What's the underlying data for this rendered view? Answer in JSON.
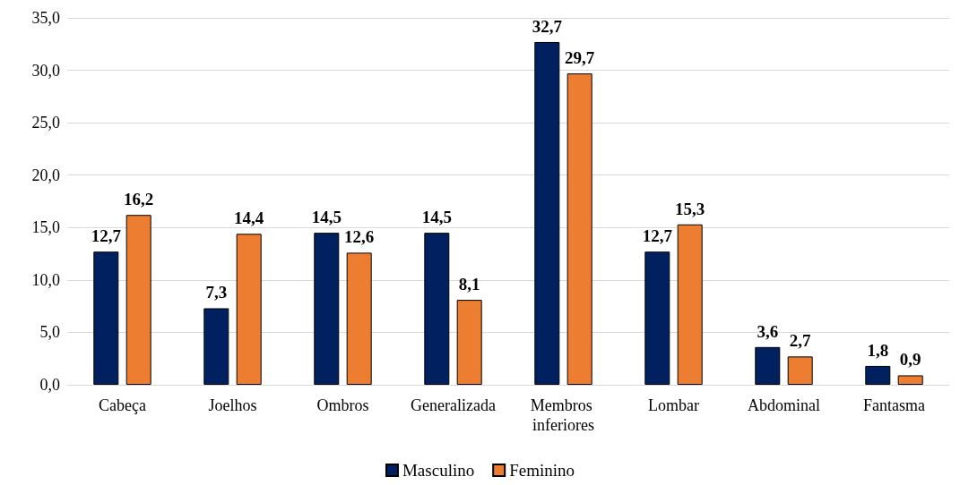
{
  "chart_data": {
    "type": "bar",
    "categories": [
      "Cabeça",
      "Joelhos",
      "Ombros",
      "Generalizada",
      "Membros inferiores",
      "Lombar",
      "Abdominal",
      "Fantasma"
    ],
    "series": [
      {
        "name": "Masculino",
        "color": "#002060",
        "values": [
          12.7,
          7.3,
          14.5,
          14.5,
          32.7,
          12.7,
          3.6,
          1.8
        ],
        "value_labels": [
          "12,7",
          "7,3",
          "14,5",
          "14,5",
          "32,7",
          "12,7",
          "3,6",
          "1,8"
        ]
      },
      {
        "name": "Feminino",
        "color": "#ed7d31",
        "values": [
          16.2,
          14.4,
          12.6,
          8.1,
          29.7,
          15.3,
          2.7,
          0.9
        ],
        "value_labels": [
          "16,2",
          "14,4",
          "12,6",
          "8,1",
          "29,7",
          "15,3",
          "2,7",
          "0,9"
        ]
      }
    ],
    "ylim": [
      0,
      35
    ],
    "yticks": [
      {
        "value": 0,
        "label": "0,0"
      },
      {
        "value": 5,
        "label": "5,0"
      },
      {
        "value": 10,
        "label": "10,0"
      },
      {
        "value": 15,
        "label": "15,0"
      },
      {
        "value": 20,
        "label": "20,0"
      },
      {
        "value": 25,
        "label": "25,0"
      },
      {
        "value": 30,
        "label": "30,0"
      },
      {
        "value": 35,
        "label": "35,0"
      }
    ],
    "grid": "y",
    "legend": "bottom"
  }
}
